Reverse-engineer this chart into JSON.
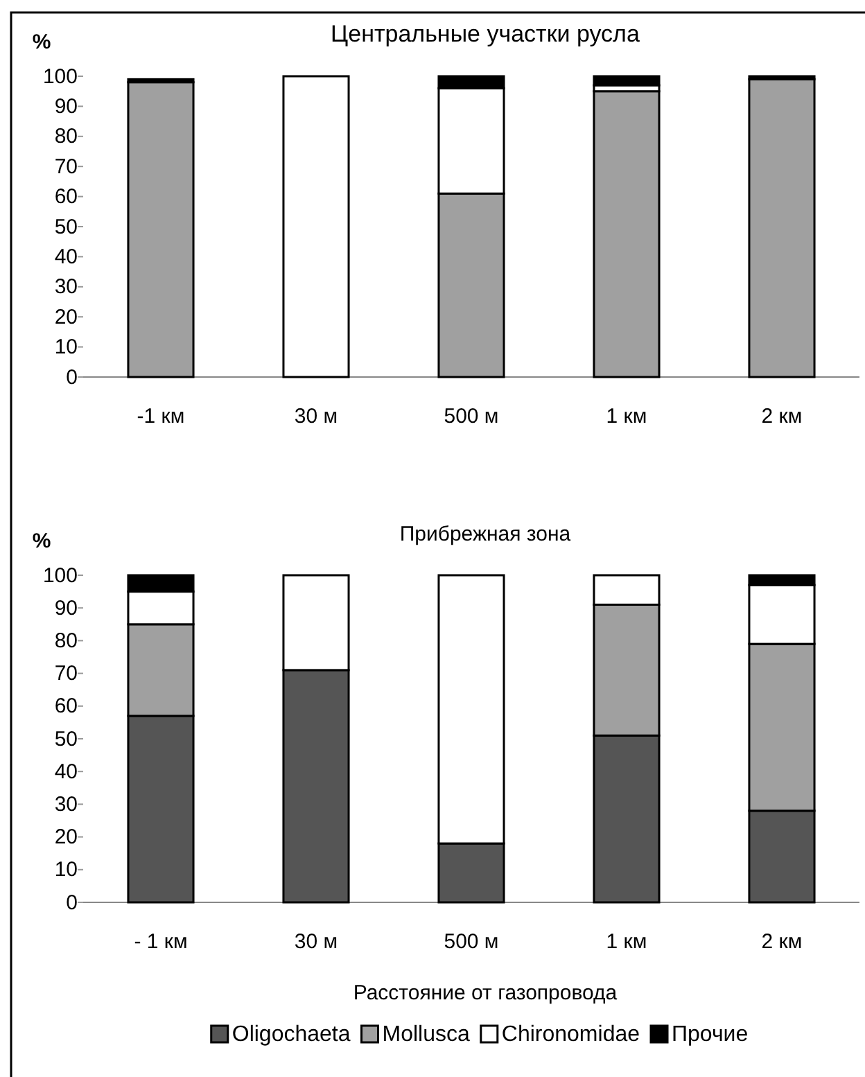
{
  "chart_data": [
    {
      "type": "bar",
      "title": "Центральные участки русла",
      "ylabel": "%",
      "categories": [
        "-1 км",
        "30 м",
        "500 м",
        "1 км",
        "2 км"
      ],
      "stacked": true,
      "ylim": [
        0,
        100
      ],
      "yticks": [
        0,
        10,
        20,
        30,
        40,
        50,
        60,
        70,
        80,
        90,
        100
      ],
      "grid": false,
      "legend": false,
      "series": [
        {
          "color": "#555555",
          "values": [
            0,
            0,
            0,
            0,
            0
          ]
        },
        {
          "color": "#a0a0a0",
          "values": [
            98,
            0,
            61,
            95,
            99
          ]
        },
        {
          "color": "#ffffff",
          "values": [
            0,
            100,
            35,
            2,
            0
          ]
        },
        {
          "color": "#000000",
          "values": [
            1,
            0,
            4,
            3,
            1
          ]
        }
      ]
    },
    {
      "type": "bar",
      "title": "Прибрежная зона",
      "ylabel": "%",
      "xlabel": "Расстояние от газопровода",
      "categories": [
        "- 1 км",
        "30 м",
        "500 м",
        "1 км",
        "2 км"
      ],
      "stacked": true,
      "ylim": [
        0,
        100
      ],
      "yticks": [
        0,
        10,
        20,
        30,
        40,
        50,
        60,
        70,
        80,
        90,
        100
      ],
      "grid": false,
      "legend": "bottom",
      "series": [
        {
          "name": "Oligochaeta",
          "color": "#555555",
          "values": [
            57,
            71,
            18,
            51,
            28
          ]
        },
        {
          "name": "Mollusca",
          "color": "#a0a0a0",
          "values": [
            28,
            0,
            0,
            40,
            51
          ]
        },
        {
          "name": "Chironomidae",
          "color": "#ffffff",
          "values": [
            10,
            29,
            82,
            9,
            18
          ]
        },
        {
          "name": "Прочие",
          "color": "#000000",
          "values": [
            5,
            0,
            0,
            0,
            3
          ]
        }
      ]
    }
  ]
}
